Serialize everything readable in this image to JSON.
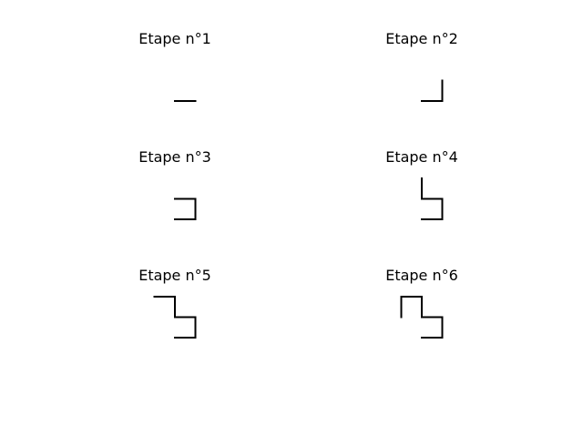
{
  "steps": [
    {
      "title": "Etape n°1",
      "moves": [
        "right"
      ]
    },
    {
      "title": "Etape n°2",
      "moves": [
        "right",
        "up"
      ]
    },
    {
      "title": "Etape n°3",
      "moves": [
        "right",
        "up",
        "left"
      ]
    },
    {
      "title": "Etape n°4",
      "moves": [
        "right",
        "up",
        "left",
        "up"
      ]
    },
    {
      "title": "Etape n°5",
      "moves": [
        "right",
        "up",
        "left",
        "up",
        "left"
      ]
    },
    {
      "title": "Etape n°6",
      "moves": [
        "right",
        "up",
        "left",
        "up",
        "left",
        "down"
      ]
    }
  ],
  "line_color": "#000000"
}
